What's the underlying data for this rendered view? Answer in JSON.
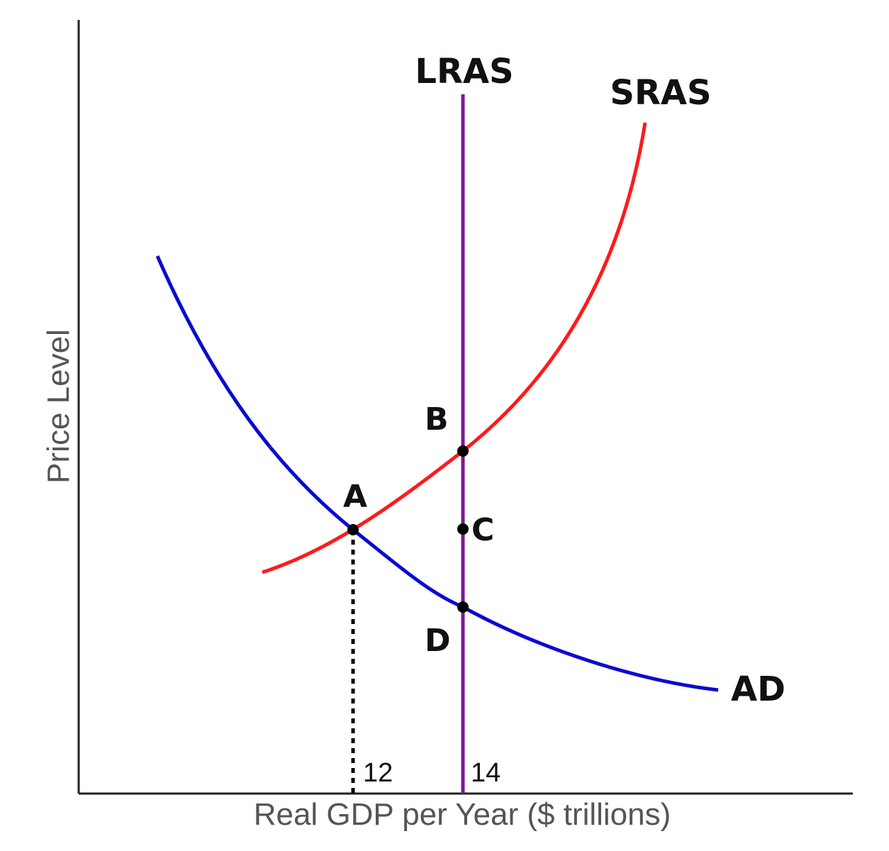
{
  "chart_data": {
    "type": "line",
    "title": "",
    "xlabel": "Real GDP per Year ($ trillions)",
    "ylabel": "Price Level",
    "x_ticks": [
      "12",
      "14"
    ],
    "curves": [
      {
        "label": "LRAS",
        "color": "#7a1a8c"
      },
      {
        "label": "SRAS",
        "color": "#ff1a1a"
      },
      {
        "label": "AD",
        "color": "#0a0ad0"
      }
    ],
    "points": [
      {
        "label": "A",
        "x": 12,
        "on": "AD ∩ SRAS"
      },
      {
        "label": "B",
        "x": 14,
        "on": "LRAS ∩ SRAS"
      },
      {
        "label": "C",
        "x": 14,
        "on": "LRAS"
      },
      {
        "label": "D",
        "x": 14,
        "on": "LRAS ∩ AD"
      }
    ],
    "grid": false
  },
  "colors": {
    "axis": "#222222",
    "point": "#000000"
  }
}
